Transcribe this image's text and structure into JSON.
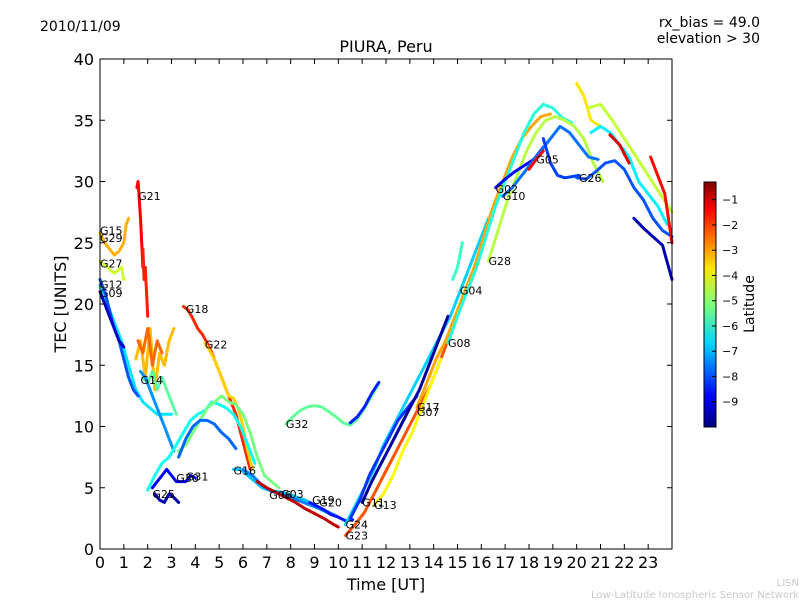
{
  "header": {
    "date": "2010/11/09",
    "rx_bias": "rx_bias = 49.0",
    "elevation": "elevation > 30"
  },
  "footer": {
    "line1": "LISN",
    "line2": "Low-Latitude Ionospheric Sensor Network"
  },
  "chart_data": {
    "type": "scatter",
    "title": "PIURA, Peru",
    "xlabel": "Time [UT]",
    "ylabel": "TEC [UNITS]",
    "xlim": [
      0,
      24
    ],
    "ylim": [
      0,
      40
    ],
    "xticks": [
      0,
      1,
      2,
      3,
      4,
      5,
      6,
      7,
      8,
      9,
      10,
      11,
      12,
      13,
      14,
      15,
      16,
      17,
      18,
      19,
      20,
      21,
      22,
      23
    ],
    "yticks": [
      0,
      5,
      10,
      15,
      20,
      25,
      30,
      35,
      40
    ],
    "grid": false,
    "colorbar": {
      "label": "Latitude",
      "range": [
        -10,
        -0.3
      ],
      "ticks": [
        -1,
        -2,
        -3,
        -4,
        -5,
        -6,
        -7,
        -8,
        -9
      ]
    },
    "satellite_labels": [
      {
        "text": "G21",
        "x": 1.6,
        "y": 28.8
      },
      {
        "text": "G15",
        "x": 0.0,
        "y": 26.0
      },
      {
        "text": "G29",
        "x": 0.0,
        "y": 25.4
      },
      {
        "text": "G27",
        "x": 0.0,
        "y": 23.3
      },
      {
        "text": "G12",
        "x": 0.0,
        "y": 21.6
      },
      {
        "text": "G09",
        "x": 0.0,
        "y": 20.9
      },
      {
        "text": "G18",
        "x": 3.6,
        "y": 19.6
      },
      {
        "text": "G22",
        "x": 4.4,
        "y": 16.7
      },
      {
        "text": "G14",
        "x": 1.7,
        "y": 13.8
      },
      {
        "text": "G32",
        "x": 7.8,
        "y": 10.2
      },
      {
        "text": "G16",
        "x": 5.6,
        "y": 6.4
      },
      {
        "text": "G31",
        "x": 3.6,
        "y": 5.9
      },
      {
        "text": "G30",
        "x": 3.2,
        "y": 5.8
      },
      {
        "text": "G25",
        "x": 2.2,
        "y": 4.5
      },
      {
        "text": "G06",
        "x": 7.1,
        "y": 4.4
      },
      {
        "text": "G03",
        "x": 7.6,
        "y": 4.5
      },
      {
        "text": "G19",
        "x": 8.9,
        "y": 4.0
      },
      {
        "text": "G20",
        "x": 9.2,
        "y": 3.8
      },
      {
        "text": "G11",
        "x": 11.0,
        "y": 3.8
      },
      {
        "text": "G13",
        "x": 11.5,
        "y": 3.6
      },
      {
        "text": "G24",
        "x": 10.3,
        "y": 2.0
      },
      {
        "text": "G23",
        "x": 10.3,
        "y": 1.1
      },
      {
        "text": "G17",
        "x": 13.3,
        "y": 11.6
      },
      {
        "text": "G07",
        "x": 13.3,
        "y": 11.2
      },
      {
        "text": "G08",
        "x": 14.6,
        "y": 16.8
      },
      {
        "text": "G04",
        "x": 15.1,
        "y": 21.1
      },
      {
        "text": "G28",
        "x": 16.3,
        "y": 23.5
      },
      {
        "text": "G02",
        "x": 16.6,
        "y": 29.4
      },
      {
        "text": "G10",
        "x": 16.9,
        "y": 28.8
      },
      {
        "text": "G05",
        "x": 18.3,
        "y": 31.8
      },
      {
        "text": "G26",
        "x": 20.1,
        "y": 30.3
      }
    ],
    "series": [
      {
        "x": [
          1.55,
          1.6,
          1.65,
          1.7,
          1.75,
          1.8
        ],
        "y": [
          29.5,
          30,
          28.5,
          27,
          25,
          23
        ],
        "lat": -1.5
      },
      {
        "x": [
          1.8,
          1.85,
          1.9,
          1.95,
          2.0
        ],
        "y": [
          24.5,
          22,
          23,
          21,
          19
        ],
        "lat": -1.8
      },
      {
        "x": [
          0,
          0.2,
          0.4,
          0.6,
          0.8,
          1.0,
          1.1,
          1.2
        ],
        "y": [
          25.8,
          25,
          24.5,
          24,
          24.3,
          25,
          26.5,
          27
        ],
        "lat": -3.2
      },
      {
        "x": [
          0,
          0.3,
          0.6,
          0.9,
          1.0
        ],
        "y": [
          23.5,
          23,
          22.5,
          23,
          22
        ],
        "lat": -4.4
      },
      {
        "x": [
          0,
          0.3,
          0.6,
          0.9,
          1.2,
          1.5,
          1.8,
          2.1,
          2.4,
          2.7,
          3.0
        ],
        "y": [
          21.5,
          20,
          18.5,
          17,
          15,
          13,
          12,
          11.5,
          11,
          11,
          11
        ],
        "lat": -6.6
      },
      {
        "x": [
          0,
          0.2,
          0.4,
          0.6,
          0.8,
          1.0,
          1.2,
          1.4,
          1.6
        ],
        "y": [
          22,
          21,
          19.5,
          18,
          17,
          15.5,
          14,
          13,
          12.5
        ],
        "lat": -8.0
      },
      {
        "x": [
          0,
          0.2,
          0.4,
          0.6,
          0.8,
          1.0
        ],
        "y": [
          21,
          20,
          19,
          18,
          17,
          16.5
        ],
        "lat": -9.3
      },
      {
        "x": [
          1.5,
          1.7,
          1.9,
          2.1,
          2.3,
          2.5,
          2.7,
          2.9,
          3.1
        ],
        "y": [
          15.5,
          17,
          14,
          18,
          13,
          16,
          15,
          17,
          18
        ],
        "lat": -3.3
      },
      {
        "x": [
          1.6,
          1.8,
          2.0,
          2.2,
          2.4,
          2.6
        ],
        "y": [
          17,
          16,
          18,
          15,
          17,
          16
        ],
        "lat": -2.5
      },
      {
        "x": [
          1.8,
          2.0,
          2.2,
          2.4,
          2.6,
          2.8,
          3.0,
          3.2
        ],
        "y": [
          14,
          13.5,
          14.5,
          13,
          14,
          13,
          12,
          11
        ],
        "lat": -5.5
      },
      {
        "x": [
          1.7,
          1.9,
          2.1,
          2.3,
          2.5,
          2.7,
          2.9,
          3.1
        ],
        "y": [
          14.5,
          14,
          13,
          12,
          11,
          10,
          9,
          8
        ],
        "lat": -7.4
      },
      {
        "x": [
          3.5,
          3.7,
          3.9,
          4.1,
          4.3,
          4.5,
          4.7,
          4.9,
          5.1,
          5.3,
          5.5,
          5.7,
          5.9,
          6.1,
          6.3
        ],
        "y": [
          19.8,
          19.5,
          18.8,
          18,
          17.5,
          16.8,
          16,
          15,
          14,
          13,
          12,
          11,
          9.5,
          8,
          6.5
        ],
        "lat": -1.9
      },
      {
        "x": [
          4.4,
          4.6,
          4.8,
          5.0,
          5.2,
          5.4,
          5.6,
          5.8,
          6.0,
          6.2,
          6.4
        ],
        "y": [
          16.8,
          16.2,
          15.5,
          14.5,
          13.5,
          12.5,
          12.3,
          11.5,
          10,
          8,
          6.5
        ],
        "lat": -3.5
      },
      {
        "x": [
          2.0,
          2.3,
          2.6,
          2.9,
          3.2,
          3.5,
          3.8,
          4.1,
          4.4,
          4.7,
          5.0,
          5.3,
          5.6,
          5.9,
          6.2,
          6.5
        ],
        "y": [
          4.8,
          6,
          7,
          7.5,
          8.5,
          9.5,
          10.5,
          11,
          11.3,
          12,
          11.8,
          11.5,
          11,
          10,
          8.5,
          7
        ],
        "lat": -6.2
      },
      {
        "x": [
          3.3,
          3.6,
          3.9,
          4.2,
          4.5,
          4.8,
          5.1,
          5.4,
          5.7,
          6.0,
          6.3,
          6.6,
          6.9,
          7.2,
          7.5
        ],
        "y": [
          8,
          8.5,
          9.5,
          10.5,
          11.5,
          12,
          12.5,
          12,
          11.8,
          11,
          9.5,
          7.5,
          6,
          5.5,
          5
        ],
        "lat": -5.2
      },
      {
        "x": [
          3.3,
          3.6,
          3.9,
          4.2,
          4.5,
          4.8,
          5.1,
          5.4,
          5.7
        ],
        "y": [
          7.5,
          9,
          10,
          10.5,
          10.5,
          10.2,
          9.5,
          9,
          8.2
        ],
        "lat": -7.8
      },
      {
        "x": [
          2.2,
          2.4,
          2.6,
          2.8,
          3.0,
          3.2,
          3.4,
          3.6,
          3.8,
          4.0
        ],
        "y": [
          5,
          5.5,
          6,
          6.5,
          6,
          5.5,
          5.5,
          5.5,
          6,
          5.8
        ],
        "lat": -8.8
      },
      {
        "x": [
          2.3,
          2.5,
          2.7,
          2.9,
          3.1,
          3.3
        ],
        "y": [
          4.5,
          4,
          3.8,
          4.5,
          4.2,
          3.8
        ],
        "lat": -9.6
      },
      {
        "x": [
          5.6,
          5.9,
          6.2,
          6.5,
          6.8,
          7.1,
          7.4,
          7.7,
          8.0,
          8.3,
          8.6,
          8.9,
          9.2,
          9.5,
          9.8,
          10.1
        ],
        "y": [
          6.5,
          6.5,
          6,
          5.5,
          5,
          4.8,
          4.7,
          4.6,
          4.4,
          4.2,
          4,
          3.7,
          3.3,
          3,
          2.8,
          2.5
        ],
        "lat": -6.9
      },
      {
        "x": [
          6.0,
          6.4,
          6.8,
          7.2,
          7.6,
          8.0,
          8.4,
          8.8,
          9.2,
          9.6,
          10.0
        ],
        "y": [
          6.5,
          6,
          5.2,
          4.7,
          4.5,
          4.2,
          3.9,
          3.6,
          3.3,
          3,
          2.6
        ],
        "lat": -7.6
      },
      {
        "x": [
          6.6,
          7.0,
          7.4,
          7.8,
          8.2,
          8.6,
          9.0,
          9.4,
          9.8,
          10.0
        ],
        "y": [
          5.5,
          5,
          4.6,
          4.2,
          3.8,
          3.3,
          2.9,
          2.5,
          2,
          1.8
        ],
        "lat": -0.9
      },
      {
        "x": [
          7.8,
          8.1,
          8.4,
          8.7,
          9.0,
          9.3,
          9.6,
          9.9,
          10.2,
          10.5,
          10.8,
          11.1,
          11.4,
          11.7
        ],
        "y": [
          10.2,
          10.8,
          11.3,
          11.6,
          11.7,
          11.6,
          11.2,
          10.8,
          10.3,
          10.1,
          10.6,
          11.5,
          12.5,
          13.5
        ],
        "lat": -5.4
      },
      {
        "x": [
          10.5,
          10.8,
          11.1,
          11.4,
          11.7
        ],
        "y": [
          10.3,
          10.8,
          11.6,
          12.7,
          13.6
        ],
        "lat": -8.5
      },
      {
        "x": [
          8.8,
          9.1,
          9.4,
          9.7,
          10.0,
          10.3,
          10.6
        ],
        "y": [
          3.8,
          3.5,
          3.2,
          2.8,
          2.6,
          2.3,
          2.4
        ],
        "lat": -8.6
      },
      {
        "x": [
          10.3,
          10.7,
          11.1,
          11.5,
          11.9,
          12.3,
          12.7,
          13.1,
          13.5,
          13.9,
          14.3,
          14.7,
          15.1
        ],
        "y": [
          1.1,
          2,
          3,
          4.5,
          6,
          7.5,
          9,
          10.5,
          12,
          13.5,
          15.5,
          17.5,
          19.5
        ],
        "lat": -2.3
      },
      {
        "x": [
          10.3,
          10.7,
          11.1,
          11.5,
          11.9,
          12.3,
          12.7,
          13.1,
          13.5,
          13.9,
          14.3,
          14.7,
          15.1,
          15.5,
          15.9,
          16.3
        ],
        "y": [
          2,
          3.5,
          5,
          6.5,
          8.5,
          10,
          11.5,
          13,
          14.5,
          16,
          17.5,
          19,
          21,
          23,
          25,
          27
        ],
        "lat": -6.8
      },
      {
        "x": [
          10.5,
          10.9,
          11.3,
          11.7,
          12.1,
          12.5,
          12.9,
          13.3
        ],
        "y": [
          2.5,
          4,
          6,
          7.5,
          9,
          10.5,
          11.5,
          12.5
        ],
        "lat": -8.3
      },
      {
        "x": [
          11.0,
          11.4,
          11.8,
          12.2,
          12.6,
          13.0,
          13.4,
          13.8,
          14.2,
          14.6
        ],
        "y": [
          3.8,
          5.5,
          7,
          8.5,
          10,
          11.5,
          13,
          15,
          17,
          19
        ],
        "lat": -9.7
      },
      {
        "x": [
          11.5,
          11.9,
          12.3,
          12.7,
          13.1,
          13.5,
          13.9,
          14.3
        ],
        "y": [
          3.6,
          4.5,
          6,
          8,
          9.5,
          11.5,
          13.5,
          15.5
        ],
        "lat": -3.9
      },
      {
        "x": [
          13.3,
          13.7,
          14.1,
          14.5,
          14.9,
          15.3,
          15.7,
          16.1,
          16.5,
          16.9,
          17.3,
          17.7,
          18.1,
          18.5,
          18.9
        ],
        "y": [
          11.6,
          13.5,
          15.5,
          17,
          19,
          21,
          23,
          25.5,
          28,
          30,
          32,
          33.5,
          34.5,
          35.3,
          35.5
        ],
        "lat": -3.1
      },
      {
        "x": [
          14.6,
          15.0,
          15.4,
          15.8,
          16.2,
          16.6,
          17.0,
          17.4,
          17.8,
          18.2,
          18.6,
          19.0,
          19.4,
          19.8
        ],
        "y": [
          16.8,
          19,
          21,
          23,
          25.5,
          28,
          30,
          32,
          34,
          35.5,
          36.3,
          36,
          35.2,
          34.8
        ],
        "lat": -6.0
      },
      {
        "x": [
          14.8,
          15.0,
          15.2
        ],
        "y": [
          22,
          23,
          25
        ],
        "lat": -5.8
      },
      {
        "x": [
          16.3,
          16.7,
          17.1,
          17.5,
          17.9,
          18.3,
          18.7,
          19.1,
          19.5,
          19.9,
          20.3,
          20.7,
          21.1
        ],
        "y": [
          23.5,
          26,
          28.5,
          30.5,
          32.5,
          34,
          35,
          35.3,
          35,
          34.5,
          33.5,
          31.5,
          30
        ],
        "lat": -4.6
      },
      {
        "x": [
          16.6,
          17.0,
          17.4,
          17.8,
          18.2,
          18.6
        ],
        "y": [
          29.5,
          30.2,
          30.8,
          31.3,
          31.8,
          32.8
        ],
        "lat": -8.7
      },
      {
        "x": [
          16.9,
          17.3,
          17.7,
          18.1,
          18.5,
          18.9,
          19.3,
          19.7,
          20.1,
          20.5,
          20.9
        ],
        "y": [
          28.8,
          29.5,
          30.5,
          31.5,
          32.5,
          33.5,
          34.5,
          34,
          33,
          32,
          31.8
        ],
        "lat": -7.7
      },
      {
        "x": [
          18.0,
          18.3,
          18.6
        ],
        "y": [
          31,
          31.8,
          32.5
        ],
        "lat": -1.5
      },
      {
        "x": [
          18.6,
          18.9,
          19.2,
          19.5,
          19.8,
          20.1
        ],
        "y": [
          33.5,
          31.5,
          30.5,
          30.3,
          30.4,
          30.5
        ],
        "lat": -8.2
      },
      {
        "x": [
          20.0,
          20.4,
          20.8,
          21.2,
          21.6,
          22.0,
          22.4,
          22.8,
          23.2,
          23.6,
          24.0
        ],
        "y": [
          30.3,
          30.2,
          30.8,
          31.5,
          31.7,
          31,
          29.5,
          28.5,
          27,
          26,
          25.5
        ],
        "lat": -8.0
      },
      {
        "x": [
          20.0,
          20.3,
          20.6,
          21.0
        ],
        "y": [
          38,
          37,
          35,
          34.5
        ],
        "lat": -3.7
      },
      {
        "x": [
          20.5,
          21.0,
          21.5,
          22.0,
          22.5,
          23.0,
          23.5,
          24.0
        ],
        "y": [
          36,
          36.3,
          35,
          33.5,
          32,
          30.5,
          29,
          27.5
        ],
        "lat": -4.5
      },
      {
        "x": [
          20.6,
          21.0,
          21.4,
          21.8,
          22.2,
          22.6,
          23.0,
          23.4,
          23.8
        ],
        "y": [
          34,
          34.5,
          34,
          33,
          32,
          30,
          29,
          28,
          26.5
        ],
        "lat": -6.5
      },
      {
        "x": [
          21.4,
          21.8,
          22.2
        ],
        "y": [
          33.8,
          33,
          31.5
        ],
        "lat": -1.2
      },
      {
        "x": [
          22.4,
          22.8,
          23.2,
          23.6,
          24.0
        ],
        "y": [
          27,
          26.2,
          25.5,
          24.8,
          22
        ],
        "lat": -9.5
      },
      {
        "x": [
          23.1,
          23.4,
          23.7,
          24.0
        ],
        "y": [
          32,
          30.5,
          29,
          25
        ],
        "lat": -1.6
      }
    ]
  }
}
